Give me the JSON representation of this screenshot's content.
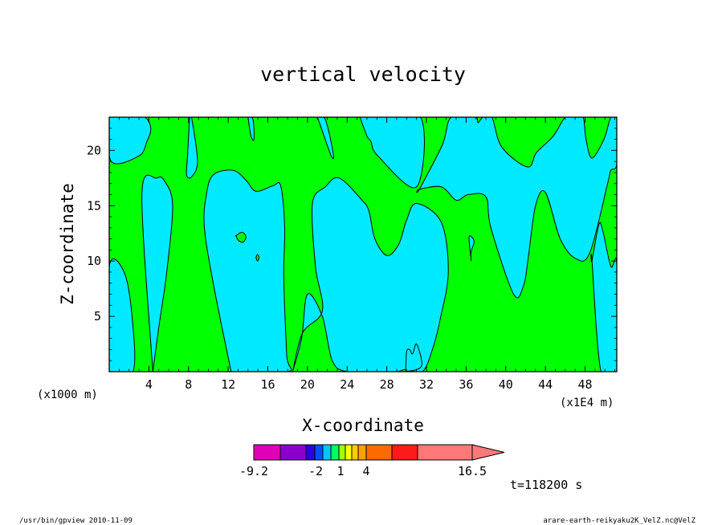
{
  "chart_data": {
    "type": "heatmap",
    "title": "vertical velocity",
    "xlabel": "X-coordinate",
    "ylabel": "Z-coordinate",
    "x_unit_label": "(x1E4 m)",
    "z_unit_label": "(x1000 m)",
    "xlim": [
      0,
      51.2
    ],
    "ylim": [
      0,
      23
    ],
    "x_ticks": [
      4,
      8,
      12,
      16,
      20,
      24,
      28,
      32,
      36,
      40,
      44,
      48
    ],
    "y_ticks": [
      5,
      10,
      15,
      20
    ],
    "colors": {
      "negative": "#00eaff",
      "positive": "#00ff00",
      "contour": "#000000"
    },
    "cyan_regions": [
      {
        "x": [
          0,
          0.2,
          3,
          3.8,
          4.2,
          3.6,
          2.2,
          1.3,
          0
        ],
        "y": [
          23,
          19,
          19.5,
          20.8,
          22,
          23,
          23,
          23,
          23
        ]
      },
      {
        "x": [
          0,
          1.5,
          2.3,
          2.4,
          0
        ],
        "y": [
          9.5,
          9,
          5,
          0,
          0
        ]
      },
      {
        "x": [
          4.4,
          3.3,
          4.8,
          5.6,
          6.4,
          5.8,
          5,
          4.4
        ],
        "y": [
          0,
          16,
          17.5,
          17.2,
          15,
          9,
          4,
          0
        ]
      },
      {
        "x": [
          8.1,
          7.9,
          7.8,
          8.3,
          8.9,
          8.3,
          8.1
        ],
        "y": [
          23,
          19.5,
          17.8,
          17.6,
          19,
          23,
          23
        ]
      },
      {
        "x": [
          12.3,
          10.6,
          9.6,
          9.8,
          10.5,
          12.5,
          13.8,
          14.8,
          16.5,
          17.3,
          17.7,
          17.6,
          17.9,
          18,
          12.3
        ],
        "y": [
          0,
          7.5,
          13,
          16,
          17.8,
          18.2,
          17.3,
          16.3,
          16.8,
          16.8,
          13,
          8.5,
          1.5,
          0,
          0
        ]
      },
      {
        "x": [
          14,
          14.3,
          14.6,
          14.5,
          14
        ],
        "y": [
          23,
          21.3,
          21,
          22.8,
          23
        ]
      },
      {
        "x": [
          18.5,
          19.5,
          21.5,
          20.8,
          20.5,
          21.8,
          23.2,
          25.5,
          26.2,
          26.8,
          28,
          29.2,
          30,
          31,
          33.5,
          34.2,
          33.4,
          32.6,
          31.6,
          30,
          29,
          27.5,
          24,
          22.5,
          21.5,
          20,
          19.4,
          18.5
        ],
        "y": [
          0,
          3.5,
          5.5,
          9.5,
          15.2,
          16.7,
          17.5,
          15.5,
          14.5,
          12,
          10.5,
          11.5,
          13.7,
          15.2,
          13.5,
          9,
          4.8,
          2,
          0,
          0.2,
          0,
          0,
          0,
          1,
          5,
          7,
          3,
          0
        ]
      },
      {
        "x": [
          21,
          21.4,
          22.4,
          22.6,
          21.8,
          21,
          21
        ],
        "y": [
          23,
          22,
          19.5,
          19.7,
          22.8,
          23,
          23
        ]
      },
      {
        "x": [
          29.9,
          30,
          30.3,
          30.6,
          31,
          31.5,
          29.9
        ],
        "y": [
          0,
          1.8,
          2,
          1.6,
          2.5,
          0.5,
          0
        ]
      },
      {
        "x": [
          25.3,
          26,
          26.4,
          27.1,
          31,
          31.4,
          26.5,
          25.3
        ],
        "y": [
          23,
          21.3,
          20.8,
          19.5,
          16.7,
          23,
          23,
          23
        ]
      },
      {
        "x": [
          31.3,
          33.5,
          35,
          36.2,
          38,
          38.5,
          40.8,
          41.8,
          42.3,
          43,
          44,
          45.5,
          47.1,
          48.5,
          50.3,
          50.6,
          51.2,
          51.2,
          50.6,
          49.9,
          48.7,
          48.1,
          47.8,
          47,
          46,
          44.8,
          43.1,
          42.2,
          39.6,
          38.6,
          37.7,
          37.2,
          36.9,
          34.5,
          33.6,
          31.3
        ],
        "y": [
          16.5,
          16.7,
          15.5,
          16,
          15.8,
          13,
          7,
          7.8,
          10.5,
          15,
          16.2,
          12,
          10.2,
          10.8,
          17.1,
          18.2,
          18.8,
          23,
          23,
          21,
          19.3,
          21,
          23,
          23,
          23,
          21.3,
          19.8,
          18.5,
          20.3,
          23,
          23,
          22.5,
          23,
          23,
          20.5,
          16.5
        ]
      },
      {
        "x": [
          48.7,
          49.4,
          49.8,
          50.6,
          51.2,
          51.2,
          49.6,
          48.7
        ],
        "y": [
          10,
          13.3,
          12.7,
          9.5,
          9.7,
          0,
          0,
          10
        ]
      },
      {
        "x": [
          36.5,
          36.3,
          36.8,
          36.5,
          36.5
        ],
        "y": [
          10.2,
          12.2,
          11.8,
          10.8,
          10.2
        ]
      },
      {
        "x": [
          13,
          13.5,
          13.6,
          13.1,
          13
        ],
        "y": [
          12.2,
          12.4,
          12,
          11.8,
          12.2
        ]
      }
    ],
    "green_islands": [
      {
        "x": [
          12.8,
          13.4,
          13.8,
          13.5,
          13,
          12.8
        ],
        "y": [
          12.3,
          12.6,
          12.2,
          11.7,
          11.9,
          12.3
        ]
      },
      {
        "x": [
          14.8,
          14.95,
          15.1,
          14.95,
          14.8
        ],
        "y": [
          10.3,
          10.6,
          10.3,
          10,
          10.3
        ]
      }
    ],
    "colorbar": {
      "levels": [
        -9.2,
        -2,
        1,
        4,
        16.5
      ],
      "colors": [
        "#e000b8",
        "#8a00c8",
        "#2a00e0",
        "#0050ff",
        "#00c8ff",
        "#00ff60",
        "#a0ff00",
        "#ffff00",
        "#ffcc00",
        "#ffa000",
        "#ff6a00",
        "#ff1a1a",
        "#ff7878"
      ]
    },
    "time_label": "t=118200 s"
  },
  "footer": {
    "left": "/usr/bin/gpview   2010-11-09",
    "right": "arare-earth-reikyaku2K_VelZ.nc@VelZ"
  }
}
